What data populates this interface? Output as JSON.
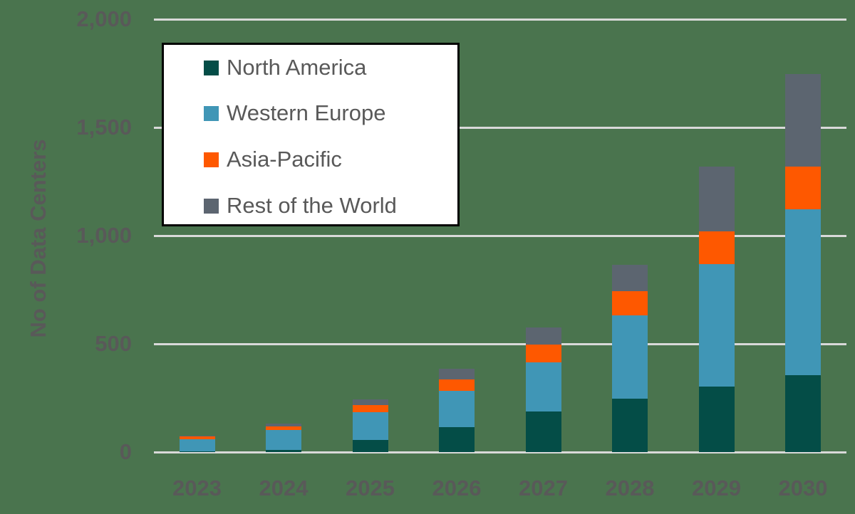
{
  "chart_data": {
    "type": "bar",
    "stacked": true,
    "title": "",
    "xlabel": "",
    "ylabel": "No of Data Centers",
    "ylim": [
      0,
      2000
    ],
    "yticks": [
      "0",
      "500",
      "1,000",
      "1,500",
      "2,000"
    ],
    "ytick_values": [
      0,
      500,
      1000,
      1500,
      2000
    ],
    "grid": true,
    "legend_position": "upper left (inside)",
    "categories": [
      "2023",
      "2024",
      "2025",
      "2026",
      "2027",
      "2028",
      "2029",
      "2030"
    ],
    "series": [
      {
        "name": "North America",
        "color": "#044d47",
        "values": [
          2,
          11,
          56,
          115,
          189,
          247,
          304,
          354
        ]
      },
      {
        "name": "Western Europe",
        "color": "#4096b6",
        "values": [
          58,
          91,
          128,
          168,
          226,
          385,
          565,
          768
        ]
      },
      {
        "name": "Asia-Pacific",
        "color": "#fe5800",
        "values": [
          13,
          16,
          34,
          53,
          81,
          110,
          151,
          196
        ]
      },
      {
        "name": "Rest of the World",
        "color": "#5c6570",
        "values": [
          3,
          13,
          26,
          49,
          80,
          123,
          298,
          429
        ]
      }
    ],
    "totals": [
      76,
      131,
      244,
      385,
      576,
      865,
      1318,
      1747
    ]
  },
  "colors": {
    "background": "#4a744e",
    "gridline": "#d9d9d9",
    "axis_text": "#595959",
    "legend_bg": "#ffffff",
    "legend_border": "#000000"
  },
  "legend": {
    "items": [
      {
        "label": "North America",
        "color": "#044d47"
      },
      {
        "label": "Western Europe",
        "color": "#4096b6"
      },
      {
        "label": "Asia-Pacific",
        "color": "#fe5800"
      },
      {
        "label": "Rest of the World",
        "color": "#5c6570"
      }
    ]
  }
}
